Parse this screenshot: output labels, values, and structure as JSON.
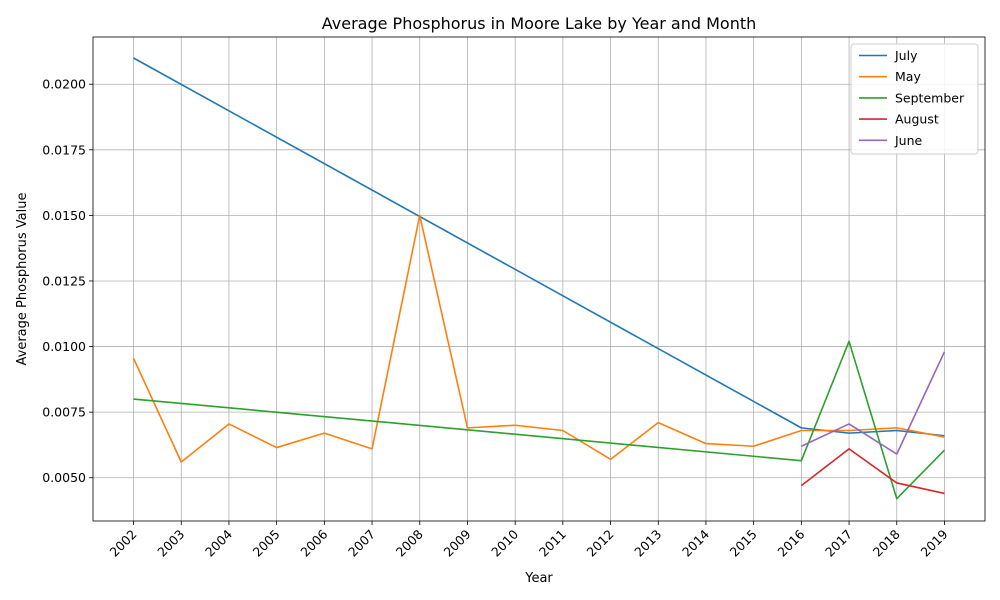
{
  "chart_data": {
    "type": "line",
    "title": "Average Phosphorus in Moore Lake by Year and Month",
    "xlabel": "Year",
    "ylabel": "Average Phosphorus Value",
    "x_ticks": [
      "2002",
      "2003",
      "2004",
      "2005",
      "2006",
      "2007",
      "2008",
      "2009",
      "2010",
      "2011",
      "2012",
      "2013",
      "2014",
      "2015",
      "2016",
      "2017",
      "2018",
      "2019"
    ],
    "y_ticks": [
      "0.0050",
      "0.0075",
      "0.0100",
      "0.0125",
      "0.0150",
      "0.0175",
      "0.0200"
    ],
    "xlim": [
      2001.15,
      2019.85
    ],
    "ylim": [
      0.00335,
      0.0218
    ],
    "grid": true,
    "legend_position": "top-right",
    "series": [
      {
        "name": "July",
        "color": "#1f77b4",
        "points": [
          [
            2002,
            0.021
          ],
          [
            2016,
            0.0069
          ],
          [
            2017,
            0.0067
          ],
          [
            2018,
            0.0068
          ],
          [
            2019,
            0.0066
          ]
        ]
      },
      {
        "name": "May",
        "color": "#ff7f0e",
        "points": [
          [
            2002,
            0.00955
          ],
          [
            2003,
            0.0056
          ],
          [
            2004,
            0.00705
          ],
          [
            2005,
            0.00615
          ],
          [
            2006,
            0.0067
          ],
          [
            2007,
            0.0061
          ],
          [
            2008,
            0.015
          ],
          [
            2009,
            0.0069
          ],
          [
            2010,
            0.007
          ],
          [
            2011,
            0.0068
          ],
          [
            2012,
            0.0057
          ],
          [
            2013,
            0.0071
          ],
          [
            2014,
            0.0063
          ],
          [
            2015,
            0.0062
          ],
          [
            2016,
            0.0068
          ],
          [
            2017,
            0.0068
          ],
          [
            2018,
            0.0069
          ],
          [
            2019,
            0.00655
          ]
        ]
      },
      {
        "name": "September",
        "color": "#2ca02c",
        "points": [
          [
            2002,
            0.008
          ],
          [
            2016,
            0.00565
          ],
          [
            2017,
            0.0102
          ],
          [
            2018,
            0.0042
          ],
          [
            2019,
            0.00605
          ]
        ]
      },
      {
        "name": "August",
        "color": "#d62728",
        "points": [
          [
            2016,
            0.0047
          ],
          [
            2017,
            0.0061
          ],
          [
            2018,
            0.0048
          ],
          [
            2019,
            0.0044
          ]
        ]
      },
      {
        "name": "June",
        "color": "#9467bd",
        "points": [
          [
            2016,
            0.0062
          ],
          [
            2017,
            0.00705
          ],
          [
            2018,
            0.0059
          ],
          [
            2019,
            0.0098
          ]
        ]
      }
    ]
  }
}
